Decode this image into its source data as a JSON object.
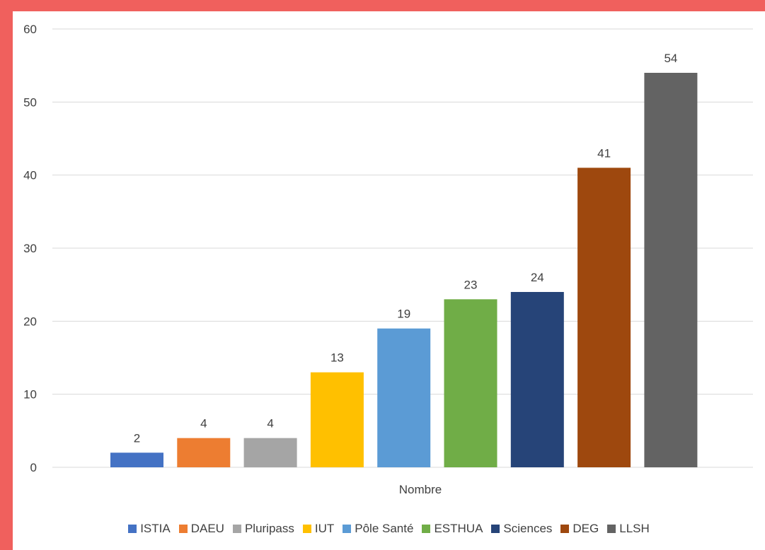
{
  "chart_data": {
    "type": "bar",
    "categories": [
      "Nombre"
    ],
    "xlabel": "Nombre",
    "ylim": [
      0,
      60
    ],
    "yticks": [
      0,
      10,
      20,
      30,
      40,
      50,
      60
    ],
    "grid": true,
    "legend_position": "bottom",
    "data_labels": true,
    "series": [
      {
        "name": "ISTIA",
        "values": [
          2
        ],
        "color": "#4472c4"
      },
      {
        "name": "DAEU",
        "values": [
          4
        ],
        "color": "#ed7d31"
      },
      {
        "name": "Pluripass",
        "values": [
          4
        ],
        "color": "#a5a5a5"
      },
      {
        "name": "IUT",
        "values": [
          13
        ],
        "color": "#ffc000"
      },
      {
        "name": "Pôle Santé",
        "values": [
          19
        ],
        "color": "#5b9bd5"
      },
      {
        "name": "ESTHUA",
        "values": [
          23
        ],
        "color": "#70ad47"
      },
      {
        "name": "Sciences",
        "values": [
          24
        ],
        "color": "#264478"
      },
      {
        "name": "DEG",
        "values": [
          41
        ],
        "color": "#9e480e"
      },
      {
        "name": "LLSH",
        "values": [
          54
        ],
        "color": "#636363"
      }
    ]
  },
  "colors": {
    "frame_border": "#f0605d",
    "gridline": "#d9d9d9",
    "text": "#404040"
  }
}
